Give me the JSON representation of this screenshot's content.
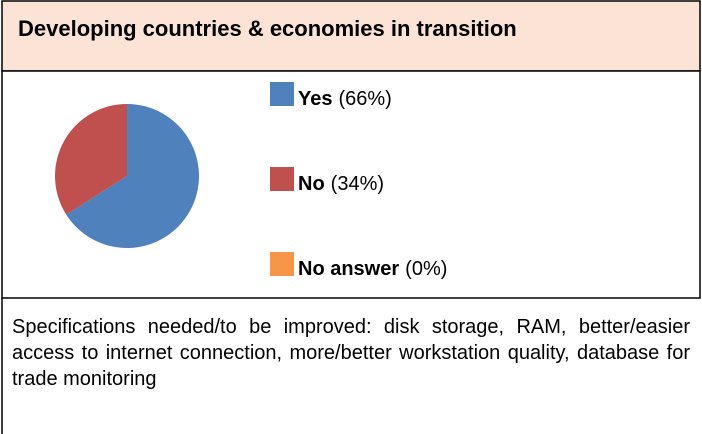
{
  "title": "Developing countries & economies in transition",
  "chart_data": {
    "type": "pie",
    "categories": [
      "Yes",
      "No",
      "No answer"
    ],
    "values": [
      66,
      34,
      0
    ],
    "value_labels": [
      "(66%)",
      "(34%)",
      "(0%)"
    ],
    "colors": [
      "#4f81bd",
      "#c0504d",
      "#f79646"
    ]
  },
  "note": "Specifications needed/to be improved: disk storage, RAM, better/easier access to internet connection, more/better workstation quality, database for trade monitoring"
}
